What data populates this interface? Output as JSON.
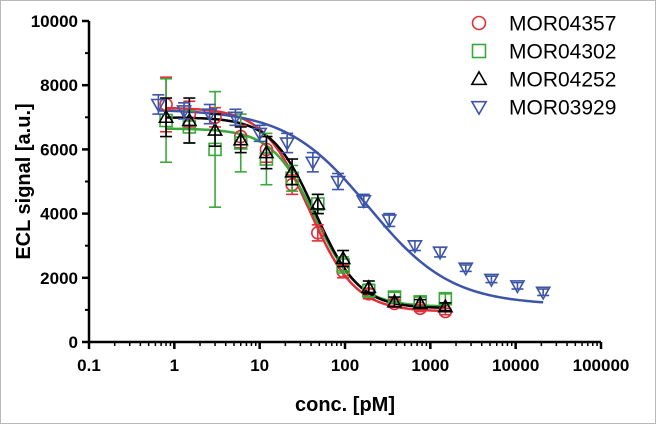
{
  "chart_data": {
    "type": "scatter",
    "title": "",
    "xlabel": "conc. [pM]",
    "ylabel": "ECL signal [a.u.]",
    "xscale": "log",
    "xlim": [
      0.1,
      100000
    ],
    "ylim": [
      0,
      10000
    ],
    "xticks": [
      0.1,
      1,
      10,
      100,
      1000,
      10000,
      100000
    ],
    "xtick_labels": [
      "0.1",
      "1",
      "10",
      "100",
      "1000",
      "10000",
      "100000"
    ],
    "yticks": [
      0,
      2000,
      4000,
      6000,
      8000,
      10000
    ],
    "ytick_labels": [
      "0",
      "2000",
      "4000",
      "6000",
      "8000",
      "10000"
    ],
    "grid": false,
    "legend_position": "top-right",
    "series": [
      {
        "name": "MOR04357",
        "color": "#e0303a",
        "marker": "circle",
        "fit": {
          "top": 7300,
          "bottom": 950,
          "ec50": 38,
          "hill": 1.6
        },
        "points": [
          {
            "x": 0.8,
            "y": 7400,
            "err": 850
          },
          {
            "x": 1.5,
            "y": 7100,
            "err": 400
          },
          {
            "x": 3,
            "y": 7000,
            "err": 300
          },
          {
            "x": 6,
            "y": 6400,
            "err": 350
          },
          {
            "x": 12,
            "y": 6000,
            "err": 400
          },
          {
            "x": 24,
            "y": 4900,
            "err": 300
          },
          {
            "x": 48,
            "y": 3400,
            "err": 250
          },
          {
            "x": 95,
            "y": 2200,
            "err": 200
          },
          {
            "x": 190,
            "y": 1500,
            "err": 150
          },
          {
            "x": 380,
            "y": 1200,
            "err": 120
          },
          {
            "x": 760,
            "y": 1050,
            "err": 100
          },
          {
            "x": 1500,
            "y": 950,
            "err": 100
          }
        ]
      },
      {
        "name": "MOR04302",
        "color": "#3aa83a",
        "marker": "square",
        "fit": {
          "top": 6650,
          "bottom": 1100,
          "ec50": 45,
          "hill": 1.7
        },
        "points": [
          {
            "x": 0.8,
            "y": 6900,
            "err": 1300
          },
          {
            "x": 1.5,
            "y": 6700,
            "err": 500
          },
          {
            "x": 3,
            "y": 6000,
            "err": 1800
          },
          {
            "x": 6,
            "y": 6200,
            "err": 900
          },
          {
            "x": 12,
            "y": 5700,
            "err": 800
          },
          {
            "x": 24,
            "y": 5100,
            "err": 400
          },
          {
            "x": 48,
            "y": 4300,
            "err": 300
          },
          {
            "x": 95,
            "y": 2400,
            "err": 250
          },
          {
            "x": 190,
            "y": 1600,
            "err": 200
          },
          {
            "x": 380,
            "y": 1400,
            "err": 150
          },
          {
            "x": 760,
            "y": 1250,
            "err": 150
          },
          {
            "x": 1500,
            "y": 1350,
            "err": 150
          }
        ]
      },
      {
        "name": "MOR04252",
        "color": "#000000",
        "marker": "triangle-up",
        "fit": {
          "top": 7000,
          "bottom": 1050,
          "ec50": 45,
          "hill": 1.7
        },
        "points": [
          {
            "x": 0.8,
            "y": 7000,
            "err": 600
          },
          {
            "x": 1.5,
            "y": 6900,
            "err": 700
          },
          {
            "x": 3,
            "y": 6600,
            "err": 500
          },
          {
            "x": 6,
            "y": 6300,
            "err": 400
          },
          {
            "x": 12,
            "y": 5900,
            "err": 500
          },
          {
            "x": 24,
            "y": 5300,
            "err": 400
          },
          {
            "x": 48,
            "y": 4300,
            "err": 300
          },
          {
            "x": 95,
            "y": 2600,
            "err": 250
          },
          {
            "x": 190,
            "y": 1700,
            "err": 200
          },
          {
            "x": 380,
            "y": 1250,
            "err": 150
          },
          {
            "x": 760,
            "y": 1200,
            "err": 120
          },
          {
            "x": 1500,
            "y": 1100,
            "err": 120
          }
        ]
      },
      {
        "name": "MOR03929",
        "color": "#3d55a8",
        "marker": "triangle-down",
        "fit": {
          "top": 7250,
          "bottom": 1150,
          "ec50": 190,
          "hill": 0.9
        },
        "points": [
          {
            "x": 0.65,
            "y": 7400,
            "err": 300
          },
          {
            "x": 1.3,
            "y": 7200,
            "err": 250
          },
          {
            "x": 2.6,
            "y": 7100,
            "err": 300
          },
          {
            "x": 5.2,
            "y": 7000,
            "err": 250
          },
          {
            "x": 10,
            "y": 6500,
            "err": 250
          },
          {
            "x": 21,
            "y": 6200,
            "err": 300
          },
          {
            "x": 42,
            "y": 5600,
            "err": 300
          },
          {
            "x": 83,
            "y": 5000,
            "err": 250
          },
          {
            "x": 166,
            "y": 4400,
            "err": 200
          },
          {
            "x": 330,
            "y": 3800,
            "err": 200
          },
          {
            "x": 660,
            "y": 3000,
            "err": 150
          },
          {
            "x": 1300,
            "y": 2800,
            "err": 150
          },
          {
            "x": 2600,
            "y": 2300,
            "err": 100
          },
          {
            "x": 5200,
            "y": 1950,
            "err": 100
          },
          {
            "x": 10500,
            "y": 1750,
            "err": 100
          },
          {
            "x": 21000,
            "y": 1550,
            "err": 100
          }
        ]
      }
    ]
  }
}
